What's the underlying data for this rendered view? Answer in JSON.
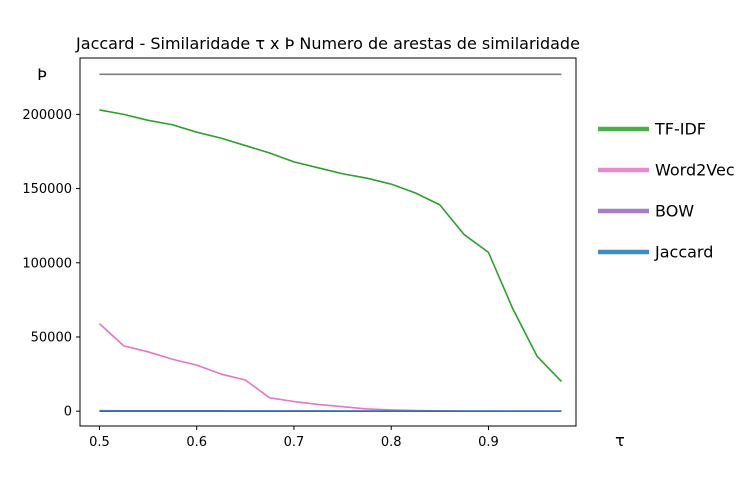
{
  "chart_data": {
    "type": "line",
    "title": "Jaccard - Similaridade τ x Þ Numero de arestas de similaridade",
    "xlabel": "τ",
    "ylabel": "Þ",
    "xlim": [
      0.48,
      0.99
    ],
    "ylim": [
      -10000,
      238000
    ],
    "x_ticks": [
      0.5,
      0.6,
      0.7,
      0.8,
      0.9
    ],
    "x_tick_labels": [
      "0.5",
      "0.6",
      "0.7",
      "0.8",
      "0.9"
    ],
    "y_ticks": [
      0,
      50000,
      100000,
      150000,
      200000
    ],
    "y_tick_labels": [
      "0",
      "50000",
      "100000",
      "150000",
      "200000"
    ],
    "grid": false,
    "legend_position": "outside-right",
    "x": [
      0.5,
      0.525,
      0.55,
      0.575,
      0.6,
      0.625,
      0.65,
      0.675,
      0.7,
      0.725,
      0.75,
      0.775,
      0.8,
      0.825,
      0.85,
      0.875,
      0.9,
      0.925,
      0.95,
      0.975
    ],
    "series": [
      {
        "name": "TF-IDF",
        "color": "#2ca02c",
        "values": [
          203000,
          200000,
          196000,
          193000,
          188000,
          184000,
          179000,
          174000,
          168000,
          164000,
          160000,
          157000,
          153000,
          147000,
          139000,
          119000,
          107000,
          69000,
          37000,
          20000
        ]
      },
      {
        "name": "Word2Vec",
        "color": "#e377c2",
        "values": [
          59000,
          44000,
          40000,
          35000,
          31000,
          25000,
          21000,
          9000,
          6500,
          4500,
          3000,
          1500,
          800,
          400,
          200,
          100,
          50,
          20,
          10,
          0
        ]
      },
      {
        "name": "BOW",
        "color": "#9467bd",
        "values": [
          300,
          280,
          260,
          240,
          220,
          200,
          180,
          160,
          140,
          120,
          100,
          80,
          60,
          50,
          40,
          30,
          20,
          10,
          5,
          0
        ]
      },
      {
        "name": "Jaccard",
        "color": "#1f77b4",
        "values": [
          0,
          0,
          0,
          0,
          0,
          0,
          0,
          0,
          0,
          0,
          0,
          0,
          0,
          0,
          0,
          0,
          0,
          0,
          0,
          0
        ]
      },
      {
        "name": "",
        "color": "#7f7f7f",
        "values": [
          227000,
          227000,
          227000,
          227000,
          227000,
          227000,
          227000,
          227000,
          227000,
          227000,
          227000,
          227000,
          227000,
          227000,
          227000,
          227000,
          227000,
          227000,
          227000,
          227000
        ]
      }
    ],
    "legend": [
      "TF-IDF",
      "Word2Vec",
      "BOW",
      "Jaccard"
    ]
  }
}
